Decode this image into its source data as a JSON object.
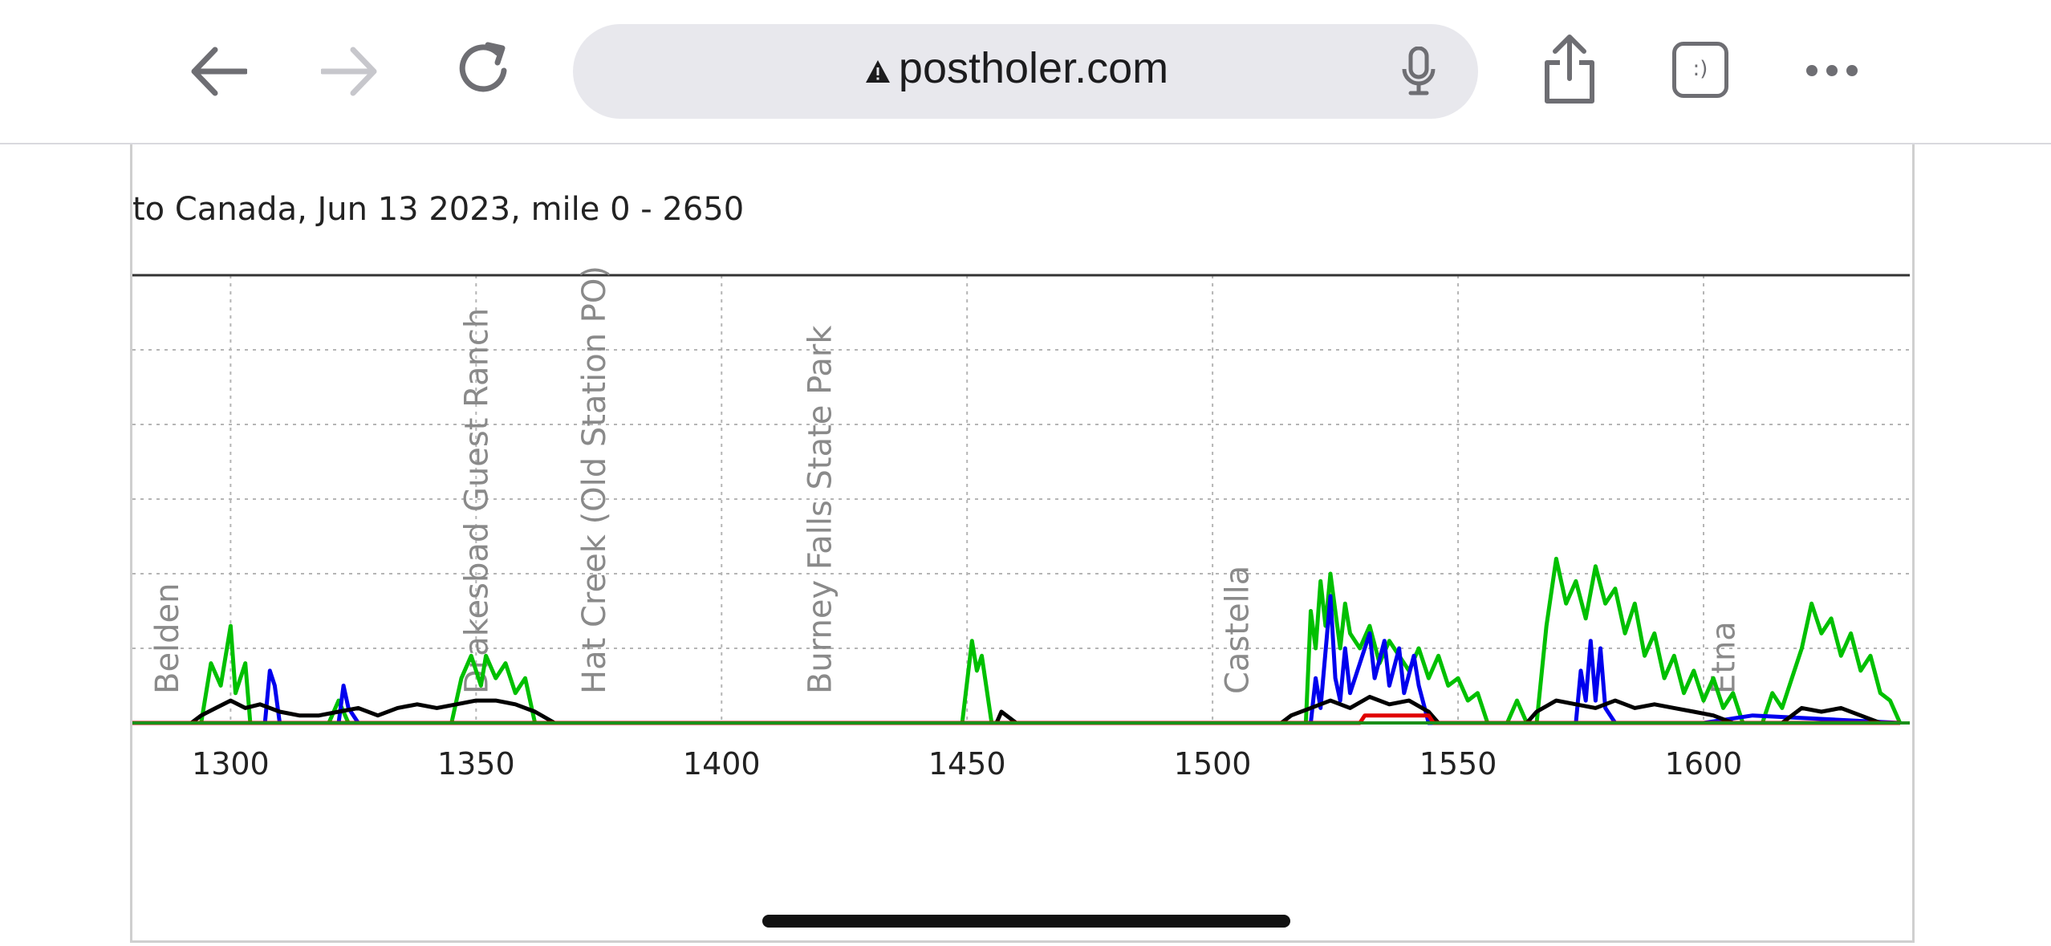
{
  "browser": {
    "url": "postholer.com",
    "back_icon": "arrow-left-icon",
    "forward_icon": "arrow-right-icon",
    "reload_icon": "reload-icon",
    "warning_icon": "warning-triangle-icon",
    "mic_icon": "microphone-icon",
    "share_icon": "share-icon",
    "tabs_label": ":)",
    "more_icon": "ellipsis-icon"
  },
  "chart_data": {
    "type": "line",
    "title": "to Canada, Jun 13 2023, mile 0 - 2650",
    "xlim": [
      1280,
      1642
    ],
    "x_ticks": [
      1300,
      1350,
      1400,
      1450,
      1500,
      1550,
      1600
    ],
    "x_tick_labels": [
      "1300",
      "1350",
      "1400",
      "1450",
      "1500",
      "1550",
      "1600"
    ],
    "ylim": [
      0,
      6
    ],
    "grid": true,
    "landmarks": [
      {
        "label": "Belden",
        "mile": 1287
      },
      {
        "label": "Drakesbad Guest Ranch",
        "mile": 1350
      },
      {
        "label": "Hat Creek (Old Station PO)",
        "mile": 1374
      },
      {
        "label": "Burney Falls State Park",
        "mile": 1420
      },
      {
        "label": "Castella",
        "mile": 1505
      },
      {
        "label": "Etna",
        "mile": 1604
      }
    ],
    "series": [
      {
        "color": "#00c000",
        "points": [
          [
            1280,
            0
          ],
          [
            1294,
            0
          ],
          [
            1296,
            0.8
          ],
          [
            1298,
            0.5
          ],
          [
            1300,
            1.3
          ],
          [
            1301,
            0.4
          ],
          [
            1303,
            0.8
          ],
          [
            1304,
            0
          ],
          [
            1320,
            0
          ],
          [
            1322,
            0.3
          ],
          [
            1324,
            0
          ],
          [
            1345,
            0
          ],
          [
            1347,
            0.6
          ],
          [
            1349,
            0.9
          ],
          [
            1351,
            0.5
          ],
          [
            1352,
            0.9
          ],
          [
            1354,
            0.6
          ],
          [
            1356,
            0.8
          ],
          [
            1358,
            0.4
          ],
          [
            1360,
            0.6
          ],
          [
            1362,
            0
          ],
          [
            1449,
            0
          ],
          [
            1451,
            1.1
          ],
          [
            1452,
            0.7
          ],
          [
            1453,
            0.9
          ],
          [
            1455,
            0
          ],
          [
            1519,
            0
          ],
          [
            1520,
            1.5
          ],
          [
            1521,
            1.0
          ],
          [
            1522,
            1.9
          ],
          [
            1523,
            1.3
          ],
          [
            1524,
            2.0
          ],
          [
            1525,
            1.5
          ],
          [
            1526,
            1.0
          ],
          [
            1527,
            1.6
          ],
          [
            1528,
            1.2
          ],
          [
            1530,
            1.0
          ],
          [
            1532,
            1.3
          ],
          [
            1534,
            0.8
          ],
          [
            1536,
            1.1
          ],
          [
            1538,
            0.9
          ],
          [
            1540,
            0.7
          ],
          [
            1542,
            1.0
          ],
          [
            1544,
            0.6
          ],
          [
            1546,
            0.9
          ],
          [
            1548,
            0.5
          ],
          [
            1550,
            0.6
          ],
          [
            1552,
            0.3
          ],
          [
            1554,
            0.4
          ],
          [
            1556,
            0
          ],
          [
            1560,
            0
          ],
          [
            1562,
            0.3
          ],
          [
            1564,
            0
          ],
          [
            1566,
            0
          ],
          [
            1568,
            1.3
          ],
          [
            1570,
            2.2
          ],
          [
            1572,
            1.6
          ],
          [
            1574,
            1.9
          ],
          [
            1576,
            1.4
          ],
          [
            1578,
            2.1
          ],
          [
            1580,
            1.6
          ],
          [
            1582,
            1.8
          ],
          [
            1584,
            1.2
          ],
          [
            1586,
            1.6
          ],
          [
            1588,
            0.9
          ],
          [
            1590,
            1.2
          ],
          [
            1592,
            0.6
          ],
          [
            1594,
            0.9
          ],
          [
            1596,
            0.4
          ],
          [
            1598,
            0.7
          ],
          [
            1600,
            0.3
          ],
          [
            1602,
            0.6
          ],
          [
            1604,
            0.2
          ],
          [
            1606,
            0.4
          ],
          [
            1608,
            0
          ],
          [
            1612,
            0
          ],
          [
            1614,
            0.4
          ],
          [
            1616,
            0.2
          ],
          [
            1618,
            0.6
          ],
          [
            1620,
            1.0
          ],
          [
            1622,
            1.6
          ],
          [
            1624,
            1.2
          ],
          [
            1626,
            1.4
          ],
          [
            1628,
            0.9
          ],
          [
            1630,
            1.2
          ],
          [
            1632,
            0.7
          ],
          [
            1634,
            0.9
          ],
          [
            1636,
            0.4
          ],
          [
            1638,
            0.3
          ],
          [
            1640,
            0
          ]
        ]
      },
      {
        "color": "#0000ee",
        "points": [
          [
            1280,
            0
          ],
          [
            1307,
            0
          ],
          [
            1308,
            0.7
          ],
          [
            1309,
            0.5
          ],
          [
            1310,
            0
          ],
          [
            1322,
            0
          ],
          [
            1323,
            0.5
          ],
          [
            1324,
            0.2
          ],
          [
            1326,
            0
          ],
          [
            1520,
            0
          ],
          [
            1521,
            0.6
          ],
          [
            1522,
            0.2
          ],
          [
            1524,
            1.7
          ],
          [
            1525,
            0.6
          ],
          [
            1526,
            0.3
          ],
          [
            1527,
            1.0
          ],
          [
            1528,
            0.4
          ],
          [
            1530,
            0.8
          ],
          [
            1532,
            1.2
          ],
          [
            1533,
            0.6
          ],
          [
            1535,
            1.1
          ],
          [
            1536,
            0.5
          ],
          [
            1538,
            1.0
          ],
          [
            1539,
            0.4
          ],
          [
            1541,
            0.9
          ],
          [
            1542,
            0.5
          ],
          [
            1544,
            0
          ],
          [
            1574,
            0
          ],
          [
            1575,
            0.7
          ],
          [
            1576,
            0.3
          ],
          [
            1577,
            1.1
          ],
          [
            1578,
            0.3
          ],
          [
            1579,
            1.0
          ],
          [
            1580,
            0.2
          ],
          [
            1582,
            0
          ],
          [
            1600,
            0
          ],
          [
            1610,
            0.1
          ],
          [
            1640,
            0
          ]
        ]
      },
      {
        "color": "#000000",
        "points": [
          [
            1280,
            0
          ],
          [
            1292,
            0
          ],
          [
            1294,
            0.1
          ],
          [
            1297,
            0.2
          ],
          [
            1300,
            0.3
          ],
          [
            1303,
            0.2
          ],
          [
            1306,
            0.25
          ],
          [
            1310,
            0.15
          ],
          [
            1314,
            0.1
          ],
          [
            1318,
            0.1
          ],
          [
            1322,
            0.15
          ],
          [
            1326,
            0.2
          ],
          [
            1330,
            0.1
          ],
          [
            1334,
            0.2
          ],
          [
            1338,
            0.25
          ],
          [
            1342,
            0.2
          ],
          [
            1346,
            0.25
          ],
          [
            1350,
            0.3
          ],
          [
            1354,
            0.3
          ],
          [
            1358,
            0.25
          ],
          [
            1362,
            0.15
          ],
          [
            1366,
            0
          ],
          [
            1456,
            0
          ],
          [
            1457,
            0.15
          ],
          [
            1460,
            0
          ],
          [
            1514,
            0
          ],
          [
            1516,
            0.1
          ],
          [
            1520,
            0.2
          ],
          [
            1524,
            0.3
          ],
          [
            1528,
            0.2
          ],
          [
            1532,
            0.35
          ],
          [
            1536,
            0.25
          ],
          [
            1540,
            0.3
          ],
          [
            1544,
            0.15
          ],
          [
            1546,
            0
          ],
          [
            1564,
            0
          ],
          [
            1566,
            0.15
          ],
          [
            1570,
            0.3
          ],
          [
            1574,
            0.25
          ],
          [
            1578,
            0.2
          ],
          [
            1582,
            0.3
          ],
          [
            1586,
            0.2
          ],
          [
            1590,
            0.25
          ],
          [
            1594,
            0.2
          ],
          [
            1598,
            0.15
          ],
          [
            1602,
            0.1
          ],
          [
            1606,
            0
          ],
          [
            1616,
            0
          ],
          [
            1620,
            0.2
          ],
          [
            1624,
            0.15
          ],
          [
            1628,
            0.2
          ],
          [
            1632,
            0.1
          ],
          [
            1636,
            0
          ],
          [
            1640,
            0
          ]
        ]
      },
      {
        "color": "#e00000",
        "points": [
          [
            1280,
            0
          ],
          [
            1530,
            0
          ],
          [
            1531,
            0.1
          ],
          [
            1544,
            0.1
          ],
          [
            1545,
            0
          ],
          [
            1640,
            0
          ]
        ]
      }
    ]
  }
}
